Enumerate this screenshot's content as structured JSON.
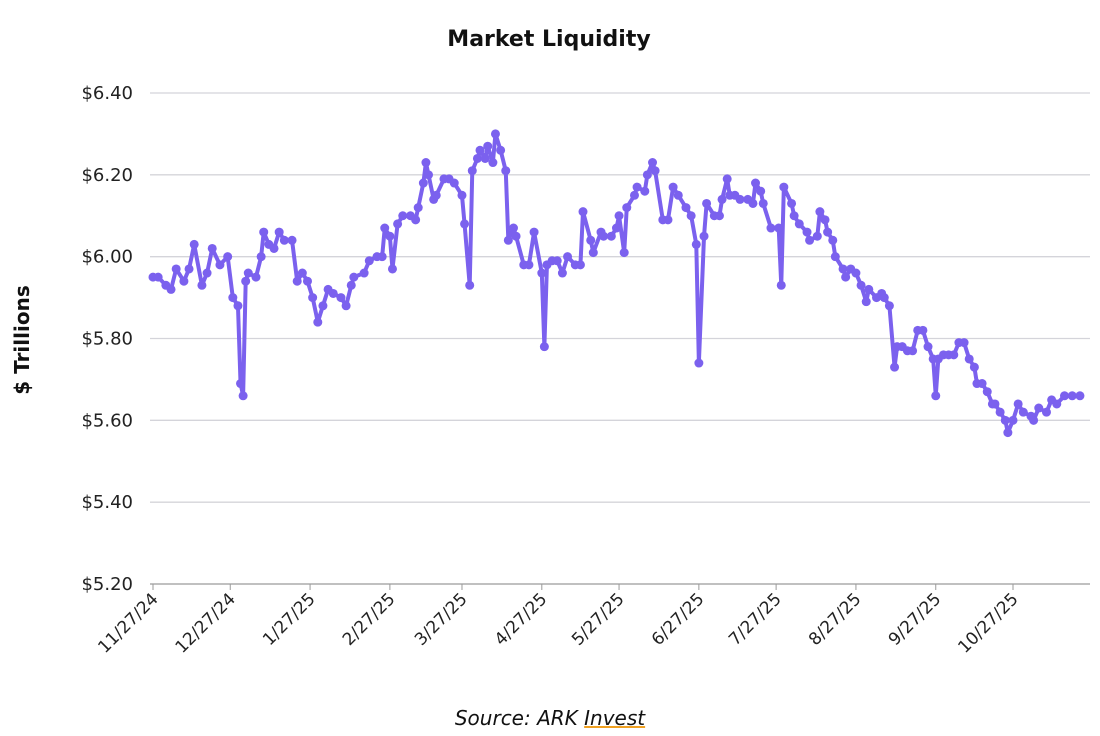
{
  "chart_data": {
    "type": "line",
    "title": "Market Liquidity",
    "xlabel": "",
    "ylabel": "$ Trillions",
    "ylim": [
      5.2,
      6.4
    ],
    "yticks": [
      5.2,
      5.4,
      5.6,
      5.8,
      6.0,
      6.2,
      6.4
    ],
    "ytick_labels": [
      "$5.20",
      "$5.40",
      "$5.60",
      "$5.80",
      "$6.00",
      "$6.20",
      "$6.40"
    ],
    "xticks": [
      "2024-11-27",
      "2024-12-27",
      "2025-01-27",
      "2025-02-27",
      "2025-03-27",
      "2025-04-27",
      "2025-05-27",
      "2025-06-27",
      "2025-07-27",
      "2025-08-27",
      "2025-09-27",
      "2025-10-27"
    ],
    "xtick_labels": [
      "11/27/24",
      "12/27/24",
      "1/27/25",
      "2/27/25",
      "3/27/25",
      "4/27/25",
      "5/27/25",
      "6/27/25",
      "7/27/25",
      "8/27/25",
      "9/27/25",
      "10/27/25"
    ],
    "grid": true,
    "markers": true,
    "color": "#7B61EE",
    "x": [
      "2024-11-27",
      "2024-11-29",
      "2024-12-02",
      "2024-12-04",
      "2024-12-06",
      "2024-12-09",
      "2024-12-11",
      "2024-12-13",
      "2024-12-16",
      "2024-12-18",
      "2024-12-20",
      "2024-12-23",
      "2024-12-26",
      "2024-12-28",
      "2024-12-30",
      "2024-12-31",
      "2025-01-01",
      "2025-01-02",
      "2025-01-03",
      "2025-01-06",
      "2025-01-08",
      "2025-01-09",
      "2025-01-11",
      "2025-01-13",
      "2025-01-15",
      "2025-01-17",
      "2025-01-20",
      "2025-01-22",
      "2025-01-24",
      "2025-01-26",
      "2025-01-28",
      "2025-01-30",
      "2025-02-01",
      "2025-02-03",
      "2025-02-05",
      "2025-02-08",
      "2025-02-10",
      "2025-02-12",
      "2025-02-13",
      "2025-02-17",
      "2025-02-19",
      "2025-02-22",
      "2025-02-24",
      "2025-02-25",
      "2025-02-27",
      "2025-02-28",
      "2025-03-02",
      "2025-03-04",
      "2025-03-07",
      "2025-03-09",
      "2025-03-10",
      "2025-03-12",
      "2025-03-13",
      "2025-03-14",
      "2025-03-16",
      "2025-03-17",
      "2025-03-20",
      "2025-03-22",
      "2025-03-24",
      "2025-03-27",
      "2025-03-28",
      "2025-03-30",
      "2025-03-31",
      "2025-04-02",
      "2025-04-03",
      "2025-04-05",
      "2025-04-06",
      "2025-04-08",
      "2025-04-09",
      "2025-04-11",
      "2025-04-13",
      "2025-04-14",
      "2025-04-16",
      "2025-04-17",
      "2025-04-20",
      "2025-04-22",
      "2025-04-24",
      "2025-04-27",
      "2025-04-28",
      "2025-04-29",
      "2025-05-01",
      "2025-05-03",
      "2025-05-05",
      "2025-05-07",
      "2025-05-10",
      "2025-05-12",
      "2025-05-13",
      "2025-05-16",
      "2025-05-17",
      "2025-05-20",
      "2025-05-21",
      "2025-05-24",
      "2025-05-26",
      "2025-05-27",
      "2025-05-29",
      "2025-05-30",
      "2025-06-02",
      "2025-06-03",
      "2025-06-06",
      "2025-06-07",
      "2025-06-09",
      "2025-06-10",
      "2025-06-13",
      "2025-06-15",
      "2025-06-17",
      "2025-06-19",
      "2025-06-22",
      "2025-06-24",
      "2025-06-26",
      "2025-06-27",
      "2025-06-29",
      "2025-06-30",
      "2025-07-03",
      "2025-07-05",
      "2025-07-06",
      "2025-07-08",
      "2025-07-09",
      "2025-07-11",
      "2025-07-13",
      "2025-07-16",
      "2025-07-18",
      "2025-07-19",
      "2025-07-21",
      "2025-07-22",
      "2025-07-25",
      "2025-07-28",
      "2025-07-29",
      "2025-07-30",
      "2025-08-02",
      "2025-08-03",
      "2025-08-05",
      "2025-08-08",
      "2025-08-09",
      "2025-08-12",
      "2025-08-13",
      "2025-08-15",
      "2025-08-16",
      "2025-08-18",
      "2025-08-19",
      "2025-08-22",
      "2025-08-23",
      "2025-08-25",
      "2025-08-27",
      "2025-08-29",
      "2025-08-31",
      "2025-09-01",
      "2025-09-04",
      "2025-09-06",
      "2025-09-07",
      "2025-09-09",
      "2025-09-11",
      "2025-09-12",
      "2025-09-14",
      "2025-09-16",
      "2025-09-18",
      "2025-09-20",
      "2025-09-22",
      "2025-09-24",
      "2025-09-26",
      "2025-09-27",
      "2025-09-28",
      "2025-09-30",
      "2025-10-02",
      "2025-10-04",
      "2025-10-06",
      "2025-10-08",
      "2025-10-10",
      "2025-10-12",
      "2025-10-13",
      "2025-10-15",
      "2025-10-17",
      "2025-10-19",
      "2025-10-20",
      "2025-10-22",
      "2025-10-24",
      "2025-10-25",
      "2025-10-27",
      "2025-10-29",
      "2025-10-31",
      "2025-11-03",
      "2025-11-04",
      "2025-11-06",
      "2025-11-09",
      "2025-11-11",
      "2025-11-13",
      "2025-11-16",
      "2025-11-19",
      "2025-11-22"
    ],
    "y": [
      5.95,
      5.95,
      5.93,
      5.92,
      5.97,
      5.94,
      5.97,
      6.03,
      5.93,
      5.96,
      6.02,
      5.98,
      6.0,
      5.9,
      5.88,
      5.69,
      5.66,
      5.94,
      5.96,
      5.95,
      6.0,
      6.06,
      6.03,
      6.02,
      6.06,
      6.04,
      6.04,
      5.94,
      5.96,
      5.94,
      5.9,
      5.84,
      5.88,
      5.92,
      5.91,
      5.9,
      5.88,
      5.93,
      5.95,
      5.96,
      5.99,
      6.0,
      6.0,
      6.07,
      6.05,
      5.97,
      6.08,
      6.1,
      6.1,
      6.09,
      6.12,
      6.18,
      6.23,
      6.2,
      6.14,
      6.15,
      6.19,
      6.19,
      6.18,
      6.15,
      6.08,
      5.93,
      6.21,
      6.24,
      6.26,
      6.24,
      6.27,
      6.23,
      6.3,
      6.26,
      6.21,
      6.04,
      6.07,
      6.05,
      5.98,
      5.98,
      6.06,
      5.96,
      5.78,
      5.98,
      5.99,
      5.99,
      5.96,
      6.0,
      5.98,
      5.98,
      6.11,
      6.04,
      6.01,
      6.06,
      6.05,
      6.05,
      6.07,
      6.1,
      6.01,
      6.12,
      6.15,
      6.17,
      6.16,
      6.2,
      6.23,
      6.21,
      6.09,
      6.09,
      6.17,
      6.15,
      6.12,
      6.1,
      6.03,
      5.74,
      6.05,
      6.13,
      6.1,
      6.1,
      6.14,
      6.19,
      6.15,
      6.15,
      6.14,
      6.14,
      6.13,
      6.18,
      6.16,
      6.13,
      6.07,
      6.07,
      5.93,
      6.17,
      6.13,
      6.1,
      6.08,
      6.06,
      6.04,
      6.05,
      6.11,
      6.09,
      6.06,
      6.04,
      6.0,
      5.97,
      5.95,
      5.97,
      5.96,
      5.93,
      5.89,
      5.92,
      5.9,
      5.91,
      5.9,
      5.88,
      5.73,
      5.78,
      5.78,
      5.77,
      5.77,
      5.82,
      5.82,
      5.78,
      5.75,
      5.66,
      5.75,
      5.76,
      5.76,
      5.76,
      5.79,
      5.79,
      5.75,
      5.73,
      5.69,
      5.69,
      5.67,
      5.64,
      5.64,
      5.62,
      5.6,
      5.57,
      5.6,
      5.64,
      5.62,
      5.61,
      5.6,
      5.63,
      5.62,
      5.65,
      5.64,
      5.66,
      5.66,
      5.66
    ]
  },
  "source": {
    "prefix": "Source: ARK ",
    "link": "Invest"
  }
}
